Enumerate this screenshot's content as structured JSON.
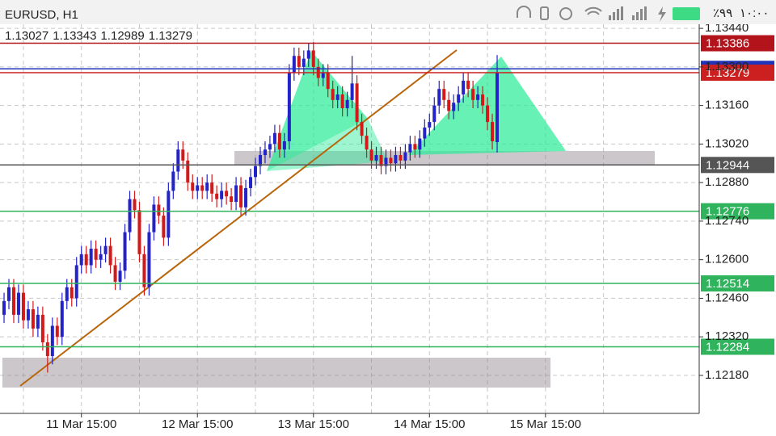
{
  "status_bar": {
    "title": "EURUSD, H1",
    "battery": "٪۹۹",
    "time": "۱۰:۰۰"
  },
  "chart_data": {
    "type": "candlestick",
    "open": [
      1.124,
      1.1245,
      1.125,
      1.124,
      1.1248,
      1.1238,
      1.1242,
      1.1235,
      1.124,
      1.123,
      1.1225,
      1.1236,
      1.1232,
      1.1245,
      1.125,
      1.1246,
      1.1258,
      1.1262,
      1.1258,
      1.1264,
      1.126,
      1.1262,
      1.1265,
      1.1258,
      1.1252,
      1.1256,
      1.127,
      1.1282,
      1.1278,
      1.1262,
      1.125,
      1.127,
      1.128,
      1.1276,
      1.1268,
      1.1285,
      1.1292,
      1.13,
      1.1296,
      1.1288,
      1.1285,
      1.1287,
      1.1285,
      1.1288,
      1.1284,
      1.1282,
      1.1285,
      1.1283,
      1.1281,
      1.1287,
      1.1279,
      1.1286,
      1.129,
      1.1294,
      1.1298,
      1.13,
      1.1302,
      1.1306,
      1.13,
      1.1303,
      1.1328,
      1.1334,
      1.133,
      1.1333,
      1.1336,
      1.133,
      1.1326,
      1.1328,
      1.1322,
      1.1318,
      1.132,
      1.1315,
      1.1318,
      1.1324,
      1.131,
      1.1305,
      1.13,
      1.1296,
      1.1298,
      1.1294,
      1.1297,
      1.1295,
      1.1298,
      1.1296,
      1.1299,
      1.1302,
      1.13,
      1.1304,
      1.1308,
      1.131,
      1.1316,
      1.1322,
      1.1318,
      1.1314,
      1.1317,
      1.132,
      1.1325,
      1.1322,
      1.1318,
      1.132,
      1.1316,
      1.131,
      1.13027
    ],
    "high": [
      1.1248,
      1.1253,
      1.1253,
      1.1251,
      1.1251,
      1.1245,
      1.1245,
      1.1243,
      1.1243,
      1.1233,
      1.1239,
      1.1239,
      1.1248,
      1.1253,
      1.1253,
      1.1261,
      1.1265,
      1.1265,
      1.1267,
      1.1267,
      1.1265,
      1.1268,
      1.1268,
      1.1261,
      1.1259,
      1.1273,
      1.1285,
      1.1285,
      1.1281,
      1.1265,
      1.1273,
      1.1283,
      1.1283,
      1.1279,
      1.1288,
      1.1295,
      1.1303,
      1.1303,
      1.1299,
      1.1291,
      1.129,
      1.129,
      1.1291,
      1.1291,
      1.1287,
      1.1288,
      1.1288,
      1.1286,
      1.129,
      1.129,
      1.1289,
      1.1293,
      1.1297,
      1.1301,
      1.1303,
      1.1305,
      1.1309,
      1.1309,
      1.1306,
      1.1331,
      1.1337,
      1.1337,
      1.1336,
      1.13386,
      1.1339,
      1.1333,
      1.1331,
      1.1331,
      1.1325,
      1.1323,
      1.1323,
      1.1321,
      1.1334,
      1.1327,
      1.1313,
      1.1308,
      1.1303,
      1.1301,
      1.1301,
      1.13,
      1.13,
      1.1301,
      1.1301,
      1.1302,
      1.1305,
      1.1305,
      1.1307,
      1.1311,
      1.1313,
      1.1319,
      1.1325,
      1.1325,
      1.1321,
      1.132,
      1.1323,
      1.1328,
      1.1328,
      1.1325,
      1.1323,
      1.1323,
      1.1319,
      1.1313,
      1.13343
    ],
    "low": [
      1.1237,
      1.1242,
      1.1237,
      1.1237,
      1.1235,
      1.1235,
      1.1232,
      1.1232,
      1.1227,
      1.1219,
      1.1222,
      1.1229,
      1.1229,
      1.1242,
      1.1243,
      1.1243,
      1.1255,
      1.1255,
      1.1255,
      1.1257,
      1.1257,
      1.1259,
      1.1255,
      1.1249,
      1.1249,
      1.1253,
      1.1267,
      1.1275,
      1.1259,
      1.1247,
      1.1247,
      1.1267,
      1.1273,
      1.1265,
      1.1265,
      1.1282,
      1.1289,
      1.1293,
      1.1285,
      1.1282,
      1.1282,
      1.1282,
      1.1282,
      1.1281,
      1.1279,
      1.1279,
      1.128,
      1.1278,
      1.1278,
      1.1276,
      1.1276,
      1.1283,
      1.1287,
      1.1291,
      1.1295,
      1.1297,
      1.1299,
      1.1297,
      1.1297,
      1.13,
      1.1325,
      1.1327,
      1.1327,
      1.133,
      1.1327,
      1.1323,
      1.1323,
      1.1319,
      1.1315,
      1.1315,
      1.1312,
      1.1312,
      1.1315,
      1.1307,
      1.1302,
      1.1297,
      1.1293,
      1.1293,
      1.1291,
      1.1291,
      1.1292,
      1.1292,
      1.1293,
      1.1293,
      1.1296,
      1.1297,
      1.1297,
      1.1301,
      1.1305,
      1.1307,
      1.1313,
      1.1315,
      1.1311,
      1.1311,
      1.1314,
      1.1317,
      1.1319,
      1.1315,
      1.1315,
      1.1313,
      1.1307,
      1.13,
      1.12989
    ],
    "close": [
      1.1245,
      1.125,
      1.124,
      1.1248,
      1.1238,
      1.1242,
      1.1235,
      1.124,
      1.123,
      1.1225,
      1.1236,
      1.1232,
      1.1245,
      1.125,
      1.1246,
      1.1258,
      1.1262,
      1.1258,
      1.1264,
      1.126,
      1.1262,
      1.1265,
      1.1258,
      1.1252,
      1.1256,
      1.127,
      1.1282,
      1.1278,
      1.1262,
      1.125,
      1.127,
      1.128,
      1.1276,
      1.1268,
      1.1285,
      1.1292,
      1.13,
      1.1296,
      1.1288,
      1.1285,
      1.1287,
      1.1285,
      1.1288,
      1.1284,
      1.1282,
      1.1285,
      1.1283,
      1.1281,
      1.1287,
      1.1279,
      1.1286,
      1.129,
      1.1294,
      1.1298,
      1.13,
      1.1302,
      1.1306,
      1.13,
      1.1303,
      1.1328,
      1.1334,
      1.133,
      1.1333,
      1.1336,
      1.133,
      1.1326,
      1.1328,
      1.1322,
      1.1318,
      1.132,
      1.1315,
      1.1318,
      1.1324,
      1.131,
      1.1305,
      1.13,
      1.1296,
      1.1298,
      1.1294,
      1.1297,
      1.1295,
      1.1298,
      1.1296,
      1.1299,
      1.1302,
      1.13,
      1.1304,
      1.1308,
      1.131,
      1.1316,
      1.1322,
      1.1318,
      1.1314,
      1.1317,
      1.132,
      1.1325,
      1.1322,
      1.1318,
      1.132,
      1.1316,
      1.131,
      1.1303,
      1.13279
    ],
    "up_color": "#2323c8",
    "down_color": "#d21a1a",
    "xlim": [
      -0.84,
      143.8
    ],
    "xticks": [
      {
        "value": 16,
        "label": "11 Mar 15:00"
      },
      {
        "value": 40,
        "label": "12 Mar 15:00"
      },
      {
        "value": 64,
        "label": "13 Mar 15:00"
      },
      {
        "value": 88,
        "label": "14 Mar 15:00"
      },
      {
        "value": 112,
        "label": "15 Mar 15:00"
      }
    ],
    "ylim": [
      1.12042,
      1.13455
    ],
    "yticks": [
      {
        "value": 1.1218,
        "label": "1.12180"
      },
      {
        "value": 1.1232,
        "label": "1.12320"
      },
      {
        "value": 1.1246,
        "label": "1.12460"
      },
      {
        "value": 1.126,
        "label": "1.12600"
      },
      {
        "value": 1.1274,
        "label": "1.12740"
      },
      {
        "value": 1.1288,
        "label": "1.12880"
      },
      {
        "value": 1.1302,
        "label": "1.13020"
      },
      {
        "value": 1.1316,
        "label": "1.13160"
      },
      {
        "value": 1.133,
        "label": "1.13300"
      },
      {
        "value": 1.1344,
        "label": "1.13440"
      }
    ],
    "grid": true,
    "levels": [
      {
        "value": 1.12944,
        "color": "#555555"
      },
      {
        "value": 1.12776,
        "color": "#2fb35c"
      },
      {
        "value": 1.12514,
        "color": "#2fb35c"
      },
      {
        "value": 1.12284,
        "color": "#2fb35c"
      },
      {
        "value": 1.13386,
        "color": "#b3141c"
      },
      {
        "value": 1.13293,
        "color": "#2233bb"
      },
      {
        "value": 1.13279,
        "color": "#cc1f1f"
      }
    ]
  }
}
